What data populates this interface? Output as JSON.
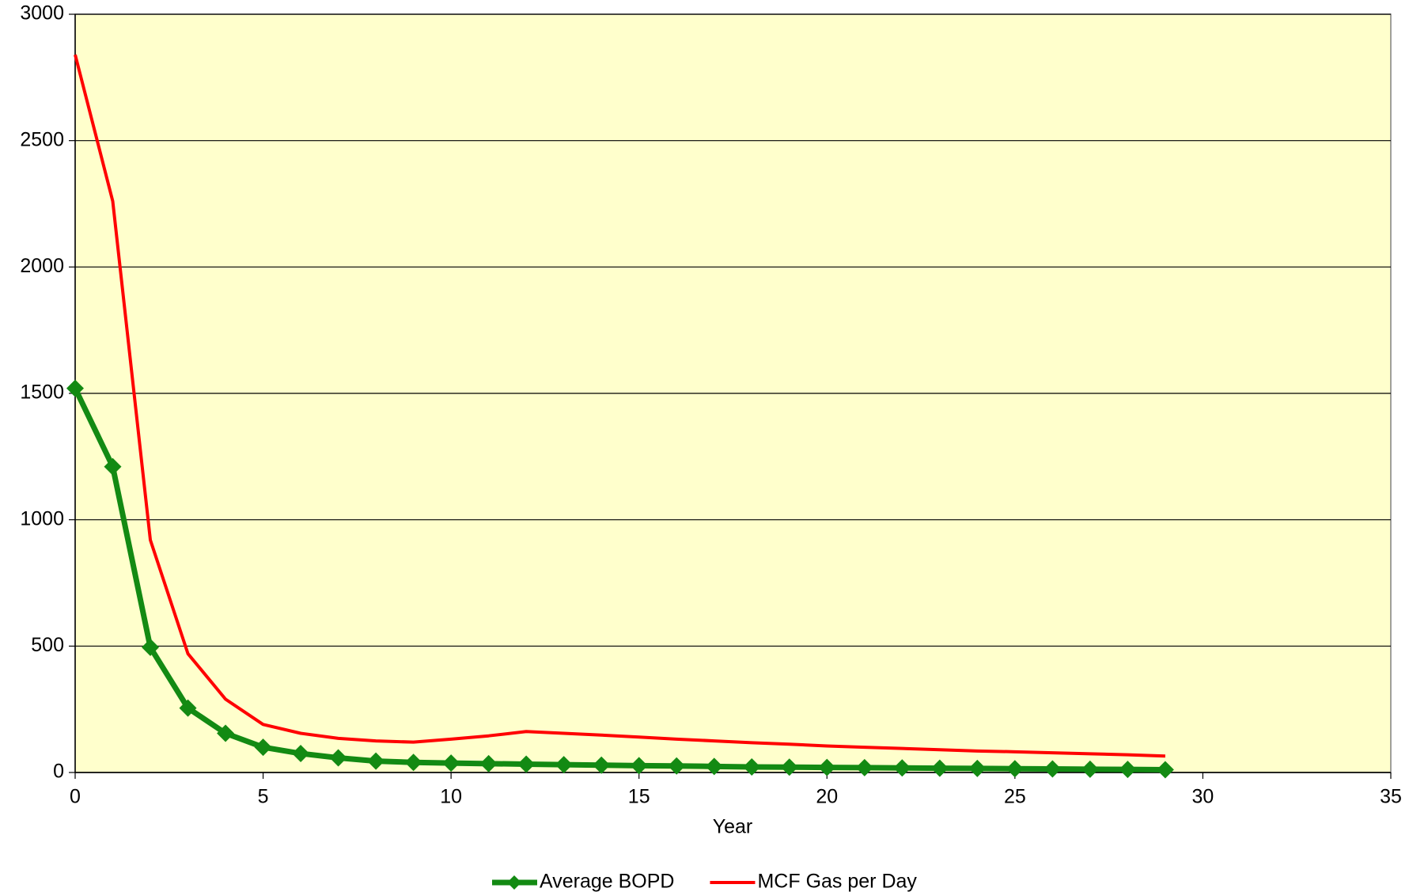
{
  "chart_data": {
    "type": "line",
    "x_label": "Year",
    "x": [
      0,
      1,
      2,
      3,
      4,
      5,
      6,
      7,
      8,
      9,
      10,
      11,
      12,
      13,
      14,
      15,
      16,
      17,
      18,
      19,
      20,
      21,
      22,
      23,
      24,
      25,
      26,
      27,
      28,
      29
    ],
    "series": [
      {
        "name": "Average BOPD",
        "color": "#138a13",
        "marker": "diamond",
        "values": [
          1520,
          1210,
          495,
          255,
          155,
          100,
          75,
          58,
          45,
          40,
          37,
          35,
          33,
          31,
          29,
          27,
          26,
          24,
          22,
          21,
          20,
          19,
          18,
          17,
          16,
          15,
          14,
          13,
          12,
          11
        ]
      },
      {
        "name": "MCF Gas per Day",
        "color": "#ff0000",
        "values": [
          2840,
          2260,
          920,
          470,
          290,
          190,
          155,
          135,
          125,
          120,
          132,
          145,
          162,
          155,
          148,
          140,
          132,
          125,
          118,
          112,
          105,
          100,
          95,
          90,
          85,
          82,
          78,
          74,
          70,
          65
        ]
      }
    ],
    "xlim": [
      0,
      35
    ],
    "xticks": [
      0,
      5,
      10,
      15,
      20,
      25,
      30,
      35
    ],
    "ylim": [
      0,
      3000
    ],
    "yticks": [
      0,
      500,
      1000,
      1500,
      2000,
      2500,
      3000
    ],
    "grid": true,
    "legend": "bottom",
    "background": "#ffffcc"
  }
}
